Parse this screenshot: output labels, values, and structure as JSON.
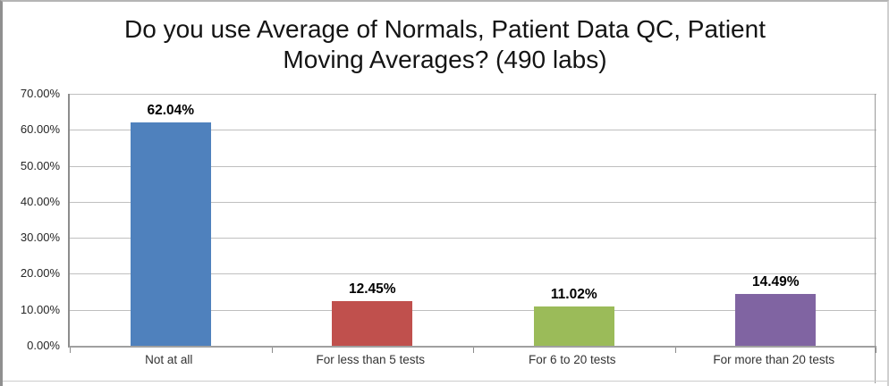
{
  "chart_data": {
    "type": "bar",
    "title": "Do you use Average of Normals, Patient Data QC, Patient Moving Averages? (490 labs)",
    "title_lines": [
      "Do you use Average of Normals, Patient Data QC, Patient",
      "Moving Averages? (490 labs)"
    ],
    "categories": [
      "Not at all",
      "For less than 5 tests",
      "For 6 to 20 tests",
      "For more than 20 tests"
    ],
    "values": [
      62.04,
      12.45,
      11.02,
      14.49
    ],
    "value_labels": [
      "62.04%",
      "12.45%",
      "11.02%",
      "14.49%"
    ],
    "bar_colors": [
      "#4f81bd",
      "#c0504d",
      "#9bbb59",
      "#8064a2"
    ],
    "y_ticks": [
      "0.00%",
      "10.00%",
      "20.00%",
      "30.00%",
      "40.00%",
      "50.00%",
      "60.00%",
      "70.00%"
    ],
    "ylim": [
      0,
      70
    ],
    "xlabel": "",
    "ylabel": "",
    "grid": true,
    "legend": "none"
  }
}
